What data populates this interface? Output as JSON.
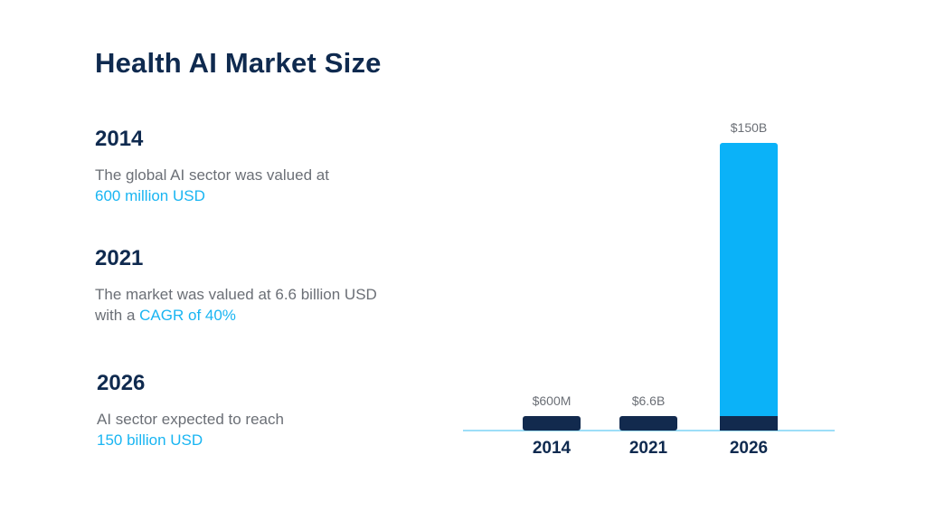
{
  "title": "Health AI Market Size",
  "milestones": [
    {
      "year": "2014",
      "text_before": "The global AI sector was valued at",
      "highlight": "600 million USD",
      "text_after": ""
    },
    {
      "year": "2021",
      "text_before": "The market was valued at 6.6 billion USD with a",
      "highlight": "CAGR of 40%",
      "text_after": ""
    },
    {
      "year": "2026",
      "text_before": "AI sector expected to reach",
      "highlight": "150 billion USD",
      "text_after": ""
    }
  ],
  "colors": {
    "bar_top": "#0bb2f8",
    "bar_base": "#122a4e",
    "axis": "#7dd3f5",
    "text_dark": "#0f2a4f",
    "text_muted": "#6b6f76",
    "highlight": "#19b5f2"
  },
  "chart_data": {
    "type": "bar",
    "title": "",
    "xlabel": "",
    "ylabel": "",
    "categories": [
      "2014",
      "2021",
      "2026"
    ],
    "values": [
      0.6,
      6.6,
      150
    ],
    "value_unit": "billion USD",
    "data_labels": [
      "$600M",
      "$6.6B",
      "$150B"
    ],
    "ylim": [
      0,
      150
    ],
    "grid": false,
    "legend": "none"
  }
}
